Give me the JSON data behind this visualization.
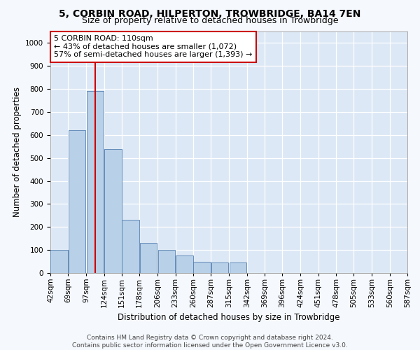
{
  "title": "5, CORBIN ROAD, HILPERTON, TROWBRIDGE, BA14 7EN",
  "subtitle": "Size of property relative to detached houses in Trowbridge",
  "xlabel": "Distribution of detached houses by size in Trowbridge",
  "ylabel": "Number of detached properties",
  "footer_line1": "Contains HM Land Registry data © Crown copyright and database right 2024.",
  "footer_line2": "Contains public sector information licensed under the Open Government Licence v3.0.",
  "bin_edges": [
    42,
    69,
    97,
    124,
    151,
    178,
    206,
    233,
    260,
    287,
    315,
    342,
    369,
    396,
    424,
    451,
    478,
    505,
    533,
    560,
    587
  ],
  "bar_heights": [
    100,
    620,
    790,
    540,
    230,
    130,
    100,
    75,
    50,
    45,
    45,
    0,
    0,
    0,
    0,
    0,
    0,
    0,
    0,
    0
  ],
  "bar_color": "#b8d0e8",
  "bar_edge_color": "#5580b0",
  "property_size": 110,
  "vline_color": "#cc0000",
  "annotation_text": "5 CORBIN ROAD: 110sqm\n← 43% of detached houses are smaller (1,072)\n57% of semi-detached houses are larger (1,393) →",
  "annotation_box_color": "#ffffff",
  "annotation_box_edge_color": "#cc0000",
  "ylim": [
    0,
    1050
  ],
  "fig_bg_color": "#f5f8fc",
  "plot_bg_color": "#dce8f5",
  "grid_color": "#ffffff",
  "title_fontsize": 10,
  "subtitle_fontsize": 9,
  "label_fontsize": 8.5,
  "tick_fontsize": 7.5,
  "footer_fontsize": 6.5,
  "annotation_fontsize": 8
}
